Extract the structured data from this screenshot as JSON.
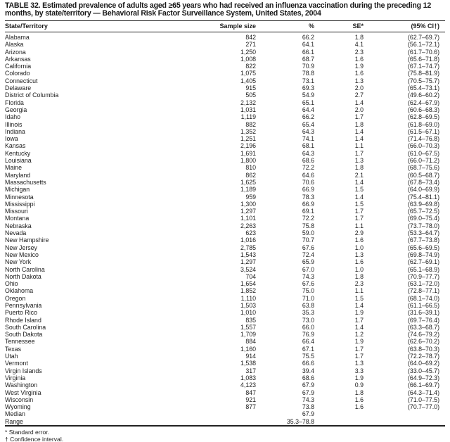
{
  "title": "TABLE 32. Estimated prevalence of adults aged ≥65 years who had received an influenza vaccination during the preceding 12 months, by state/territory — Behavioral Risk Factor Surveillance System, United States, 2004",
  "columns": [
    "State/Territory",
    "Sample size",
    "%",
    "SE*",
    "(95% CI†)"
  ],
  "rows": [
    {
      "territory": "Alabama",
      "sample_size": "842",
      "pct": "66.2",
      "se": "1.8",
      "ci": "(62.7–69.7)"
    },
    {
      "territory": "Alaska",
      "sample_size": "271",
      "pct": "64.1",
      "se": "4.1",
      "ci": "(56.1–72.1)"
    },
    {
      "territory": "Arizona",
      "sample_size": "1,250",
      "pct": "66.1",
      "se": "2.3",
      "ci": "(61.7–70.6)"
    },
    {
      "territory": "Arkansas",
      "sample_size": "1,008",
      "pct": "68.7",
      "se": "1.6",
      "ci": "(65.6–71.8)"
    },
    {
      "territory": "California",
      "sample_size": "822",
      "pct": "70.9",
      "se": "1.9",
      "ci": "(67.1–74.7)"
    },
    {
      "territory": "Colorado",
      "sample_size": "1,075",
      "pct": "78.8",
      "se": "1.6",
      "ci": "(75.8–81.9)"
    },
    {
      "territory": "Connecticut",
      "sample_size": "1,405",
      "pct": "73.1",
      "se": "1.3",
      "ci": "(70.5–75.7)"
    },
    {
      "territory": "Delaware",
      "sample_size": "915",
      "pct": "69.3",
      "se": "2.0",
      "ci": "(65.4–73.1)"
    },
    {
      "territory": "District of Columbia",
      "sample_size": "505",
      "pct": "54.9",
      "se": "2.7",
      "ci": "(49.6–60.2)"
    },
    {
      "territory": "Florida",
      "sample_size": "2,132",
      "pct": "65.1",
      "se": "1.4",
      "ci": "(62.4–67.9)"
    },
    {
      "territory": "Georgia",
      "sample_size": "1,031",
      "pct": "64.4",
      "se": "2.0",
      "ci": "(60.6–68.3)"
    },
    {
      "territory": "Idaho",
      "sample_size": "1,119",
      "pct": "66.2",
      "se": "1.7",
      "ci": "(62.8–69.5)"
    },
    {
      "territory": "Illinois",
      "sample_size": "882",
      "pct": "65.4",
      "se": "1.8",
      "ci": "(61.8–69.0)"
    },
    {
      "territory": "Indiana",
      "sample_size": "1,352",
      "pct": "64.3",
      "se": "1.4",
      "ci": "(61.5–67.1)"
    },
    {
      "territory": "Iowa",
      "sample_size": "1,251",
      "pct": "74.1",
      "se": "1.4",
      "ci": "(71.4–76.8)"
    },
    {
      "territory": "Kansas",
      "sample_size": "2,196",
      "pct": "68.1",
      "se": "1.1",
      "ci": "(66.0–70.3)"
    },
    {
      "territory": "Kentucky",
      "sample_size": "1,691",
      "pct": "64.3",
      "se": "1.7",
      "ci": "(61.0–67.5)"
    },
    {
      "territory": "Louisiana",
      "sample_size": "1,800",
      "pct": "68.6",
      "se": "1.3",
      "ci": "(66.0–71.2)"
    },
    {
      "territory": "Maine",
      "sample_size": "810",
      "pct": "72.2",
      "se": "1.8",
      "ci": "(68.7–75.6)"
    },
    {
      "territory": "Maryland",
      "sample_size": "862",
      "pct": "64.6",
      "se": "2.1",
      "ci": "(60.5–68.7)"
    },
    {
      "territory": "Massachusetts",
      "sample_size": "1,625",
      "pct": "70.6",
      "se": "1.4",
      "ci": "(67.8–73.4)"
    },
    {
      "territory": "Michigan",
      "sample_size": "1,189",
      "pct": "66.9",
      "se": "1.5",
      "ci": "(64.0–69.9)"
    },
    {
      "territory": "Minnesota",
      "sample_size": "959",
      "pct": "78.3",
      "se": "1.4",
      "ci": "(75.4–81.1)"
    },
    {
      "territory": "Mississippi",
      "sample_size": "1,300",
      "pct": "66.9",
      "se": "1.5",
      "ci": "(63.9–69.8)"
    },
    {
      "territory": "Missouri",
      "sample_size": "1,297",
      "pct": "69.1",
      "se": "1.7",
      "ci": "(65.7–72.5)"
    },
    {
      "territory": "Montana",
      "sample_size": "1,101",
      "pct": "72.2",
      "se": "1.7",
      "ci": "(69.0–75.4)"
    },
    {
      "territory": "Nebraska",
      "sample_size": "2,263",
      "pct": "75.8",
      "se": "1.1",
      "ci": "(73.7–78.0)"
    },
    {
      "territory": "Nevada",
      "sample_size": "623",
      "pct": "59.0",
      "se": "2.9",
      "ci": "(53.3–64.7)"
    },
    {
      "territory": "New Hampshire",
      "sample_size": "1,016",
      "pct": "70.7",
      "se": "1.6",
      "ci": "(67.7–73.8)"
    },
    {
      "territory": "New Jersey",
      "sample_size": "2,785",
      "pct": "67.6",
      "se": "1.0",
      "ci": "(65.6–69.5)"
    },
    {
      "territory": "New Mexico",
      "sample_size": "1,543",
      "pct": "72.4",
      "se": "1.3",
      "ci": "(69.8–74.9)"
    },
    {
      "territory": "New York",
      "sample_size": "1,297",
      "pct": "65.9",
      "se": "1.6",
      "ci": "(62.7–69.1)"
    },
    {
      "territory": "North Carolina",
      "sample_size": "3,524",
      "pct": "67.0",
      "se": "1.0",
      "ci": "(65.1–68.9)"
    },
    {
      "territory": "North Dakota",
      "sample_size": "704",
      "pct": "74.3",
      "se": "1.8",
      "ci": "(70.9–77.7)"
    },
    {
      "territory": "Ohio",
      "sample_size": "1,654",
      "pct": "67.6",
      "se": "2.3",
      "ci": "(63.1–72.0)"
    },
    {
      "territory": "Oklahoma",
      "sample_size": "1,852",
      "pct": "75.0",
      "se": "1.1",
      "ci": "(72.8–77.1)"
    },
    {
      "territory": "Oregon",
      "sample_size": "1,110",
      "pct": "71.0",
      "se": "1.5",
      "ci": "(68.1–74.0)"
    },
    {
      "territory": "Pennsylvania",
      "sample_size": "1,503",
      "pct": "63.8",
      "se": "1.4",
      "ci": "(61.1–66.5)"
    },
    {
      "territory": "Puerto Rico",
      "sample_size": "1,010",
      "pct": "35.3",
      "se": "1.9",
      "ci": "(31.6–39.1)"
    },
    {
      "territory": "Rhode Island",
      "sample_size": "835",
      "pct": "73.0",
      "se": "1.7",
      "ci": "(69.7–76.4)"
    },
    {
      "territory": "South Carolina",
      "sample_size": "1,557",
      "pct": "66.0",
      "se": "1.4",
      "ci": "(63.3–68.7)"
    },
    {
      "territory": "South Dakota",
      "sample_size": "1,709",
      "pct": "76.9",
      "se": "1.2",
      "ci": "(74.6–79.2)"
    },
    {
      "territory": "Tennessee",
      "sample_size": "884",
      "pct": "66.4",
      "se": "1.9",
      "ci": "(62.6–70.2)"
    },
    {
      "territory": "Texas",
      "sample_size": "1,160",
      "pct": "67.1",
      "se": "1.7",
      "ci": "(63.8–70.3)"
    },
    {
      "territory": "Utah",
      "sample_size": "914",
      "pct": "75.5",
      "se": "1.7",
      "ci": "(72.2–78.7)"
    },
    {
      "territory": "Vermont",
      "sample_size": "1,538",
      "pct": "66.6",
      "se": "1.3",
      "ci": "(64.0–69.2)"
    },
    {
      "territory": "Virgin Islands",
      "sample_size": "317",
      "pct": "39.4",
      "se": "3.3",
      "ci": "(33.0–45.7)"
    },
    {
      "territory": "Virginia",
      "sample_size": "1,083",
      "pct": "68.6",
      "se": "1.9",
      "ci": "(64.9–72.3)"
    },
    {
      "territory": "Washington",
      "sample_size": "4,123",
      "pct": "67.9",
      "se": "0.9",
      "ci": "(66.1–69.7)"
    },
    {
      "territory": "West Virginia",
      "sample_size": "847",
      "pct": "67.9",
      "se": "1.8",
      "ci": "(64.3–71.4)"
    },
    {
      "territory": "Wisconsin",
      "sample_size": "921",
      "pct": "74.3",
      "se": "1.6",
      "ci": "(71.0–77.5)"
    },
    {
      "territory": "Wyoming",
      "sample_size": "877",
      "pct": "73.8",
      "se": "1.6",
      "ci": "(70.7–77.0)"
    }
  ],
  "summary_rows": [
    {
      "territory": "Median",
      "pct": "67.9"
    },
    {
      "territory": "Range",
      "pct": "35.3–78.8"
    }
  ],
  "footnotes": [
    "* Standard error.",
    "† Confidence interval."
  ]
}
